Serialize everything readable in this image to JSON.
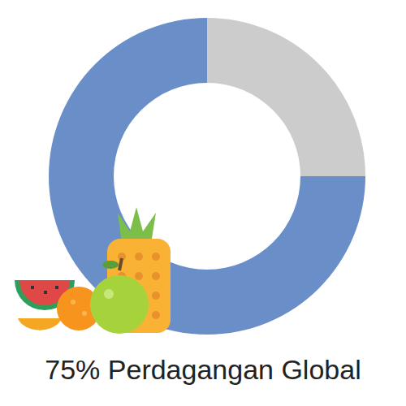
{
  "chart_data": {
    "type": "pie",
    "title": "75% Perdagangan Global",
    "values": [
      75,
      25
    ],
    "colors": [
      "#6a8fc8",
      "#cccccc"
    ]
  }
}
